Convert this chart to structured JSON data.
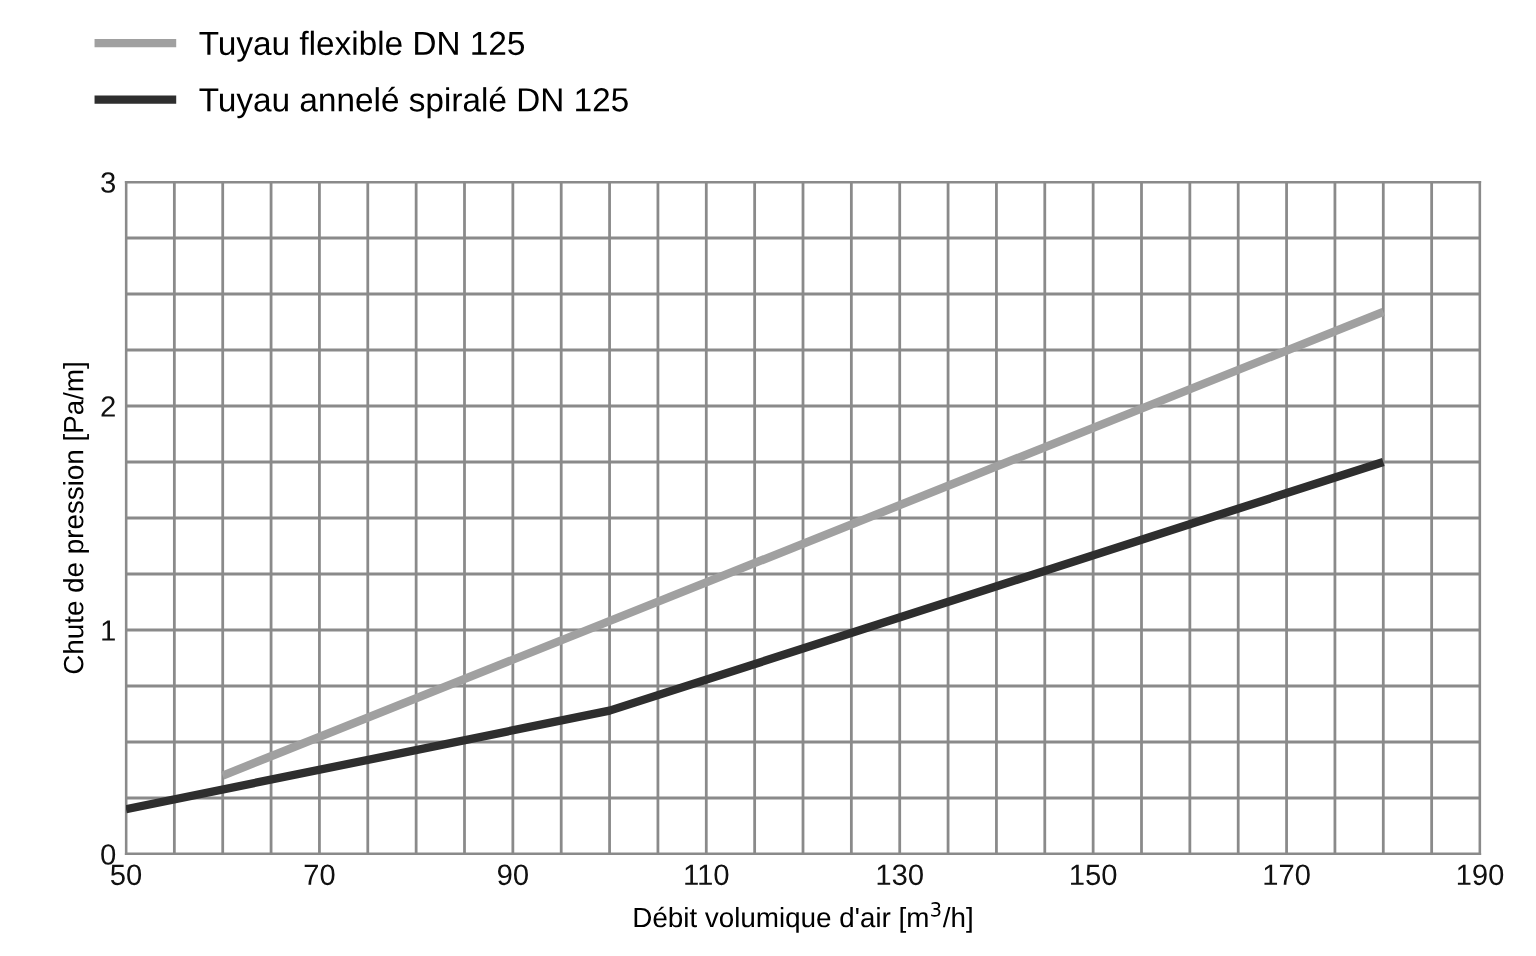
{
  "chart_data": {
    "type": "line",
    "xlabel": "Débit volumique d'air [m$^{3}$/h]",
    "ylabel": "Chute de pression [Pa/m]",
    "series": [
      {
        "name": "Tuyau flexible DN 125",
        "color": "#a0a0a0",
        "x": [
          60,
          180
        ],
        "values": [
          0.35,
          2.42
        ]
      },
      {
        "name": "Tuyau annelé spiralé DN 125",
        "color": "#2e2e2e",
        "x": [
          50,
          100,
          180
        ],
        "values": [
          0.2,
          0.64,
          1.75
        ]
      }
    ],
    "xlim": [
      50,
      190
    ],
    "xticks": [
      50,
      {
        "value": 55,
        "label": null
      },
      {
        "value": 60,
        "label": null
      },
      {
        "value": 65,
        "label": null
      },
      70,
      {
        "value": 75,
        "label": null
      },
      {
        "value": 80,
        "label": null
      },
      {
        "value": 85,
        "label": null
      },
      90,
      {
        "value": 95,
        "label": null
      },
      {
        "value": 100,
        "label": null
      },
      {
        "value": 105,
        "label": null
      },
      110,
      {
        "value": 115,
        "label": null
      },
      {
        "value": 120,
        "label": null
      },
      {
        "value": 125,
        "label": null
      },
      130,
      {
        "value": 135,
        "label": null
      },
      {
        "value": 140,
        "label": null
      },
      {
        "value": 145,
        "label": null
      },
      150,
      {
        "value": 155,
        "label": null
      },
      {
        "value": 160,
        "label": null
      },
      {
        "value": 165,
        "label": null
      },
      170,
      {
        "value": 175,
        "label": null
      },
      {
        "value": 180,
        "label": null
      },
      {
        "value": 185,
        "label": null
      },
      190
    ],
    "ylim": [
      0,
      3
    ],
    "yticks": [
      0,
      {
        "value": 0.25,
        "label": null
      },
      {
        "value": 0.5,
        "label": null
      },
      {
        "value": 0.75,
        "label": null
      },
      1,
      {
        "value": 1.25,
        "label": null
      },
      {
        "value": 1.5,
        "label": null
      },
      {
        "value": 1.75,
        "label": null
      },
      2,
      {
        "value": 2.25,
        "label": null
      },
      {
        "value": 2.5,
        "label": null
      },
      {
        "value": 2.75,
        "label": null
      },
      3
    ],
    "grid": true,
    "legend": "top left",
    "marker": "none",
    "line_style": "solid"
  }
}
